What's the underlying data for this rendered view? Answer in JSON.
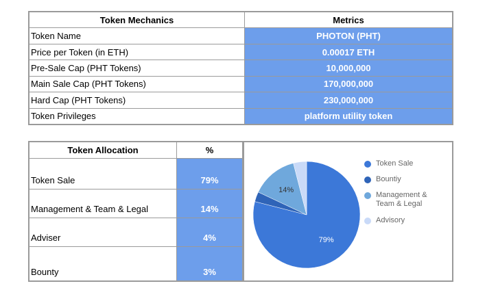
{
  "table1": {
    "header": [
      "Token Mechanics",
      "Metrics"
    ],
    "rows": [
      [
        "Token Name",
        "PHOTON (PHT)"
      ],
      [
        "Price per Token (in ETH)",
        "0.00017 ETH"
      ],
      [
        "Pre-Sale Cap (PHT Tokens)",
        "10,000,000"
      ],
      [
        "Main Sale Cap (PHT Tokens)",
        "170,000,000"
      ],
      [
        "Hard Cap (PHT Tokens)",
        "230,000,000"
      ],
      [
        "Token Privileges",
        "platform utility token"
      ]
    ]
  },
  "table2": {
    "header": [
      "Token Allocation",
      "%"
    ],
    "rows": [
      [
        "Token Sale",
        "79%"
      ],
      [
        "Management & Team & Legal",
        "14%"
      ],
      [
        "Adviser",
        "4%"
      ],
      [
        "Bounty",
        "3%"
      ]
    ]
  },
  "chart_data": {
    "type": "pie",
    "categories": [
      "Token Sale",
      "Bountiy",
      "Management & Team & Legal",
      "Advisory"
    ],
    "values": [
      79,
      3,
      14,
      4
    ],
    "value_labels": [
      "79%",
      null,
      "14%",
      null
    ],
    "colors": [
      "#3c78d8",
      "#2f64b8",
      "#6fa8dc",
      "#c9daf8"
    ]
  }
}
